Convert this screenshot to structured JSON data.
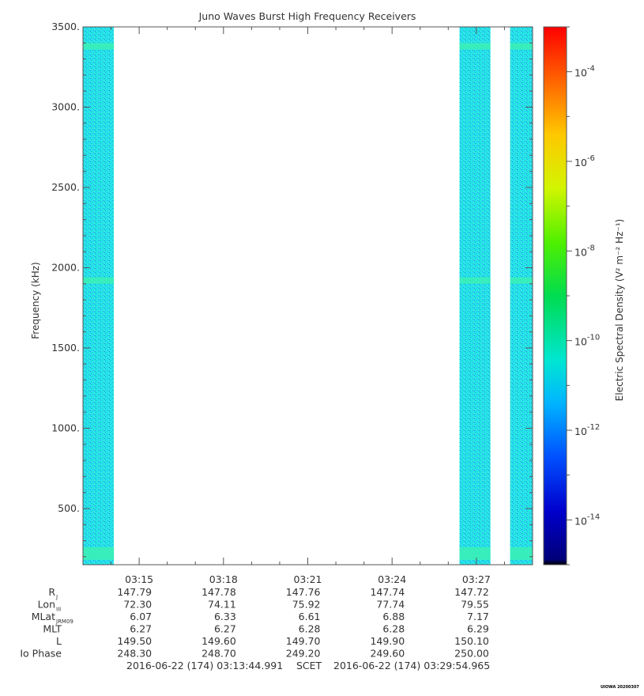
{
  "chart_data": {
    "type": "heatmap",
    "title": "Juno Waves Burst High Frequency Receivers",
    "ylabel": "Frequency (kHz)",
    "colorbar_label": "Electric Spectral Density (V² m⁻² Hz⁻¹)",
    "ylim": [
      150,
      3500
    ],
    "y_ticks": [
      500,
      1000,
      1500,
      2000,
      2500,
      3000,
      3500
    ],
    "y_tick_labels": [
      "500.",
      "1000.",
      "1500.",
      "2000.",
      "2500.",
      "3000.",
      "3500."
    ],
    "x_range_minutes": [
      193.0,
      209.0
    ],
    "x_ticks_minutes": [
      195,
      198,
      201,
      204,
      207
    ],
    "x_tick_labels": [
      "03:15",
      "03:18",
      "03:21",
      "03:24",
      "03:27"
    ],
    "colorbar_scale": "log",
    "colorbar_range": [
      1e-15,
      0.001
    ],
    "colorbar_ticks": [
      -14,
      -12,
      -10,
      -8,
      -6,
      -4
    ],
    "colorbar_tick_labels": [
      "10",
      "10",
      "10",
      "10",
      "10",
      "10"
    ],
    "colorbar_tick_exponents": [
      "-14",
      "-12",
      "-10",
      "-8",
      "-6",
      "-4"
    ],
    "data_intervals_minutes": [
      [
        193.0,
        194.1
      ],
      [
        206.4,
        207.5
      ],
      [
        208.2,
        209.0
      ]
    ],
    "background_log_level": -11.7,
    "emission_bands_khz": [
      220,
      1920,
      3380
    ],
    "colors": {
      "background_fill": "#26e6e6",
      "emission_band": "#3cf0b4"
    }
  },
  "ephemeris": {
    "rows": [
      {
        "label": "R",
        "sub": "J",
        "values": [
          "147.79",
          "147.78",
          "147.76",
          "147.74",
          "147.72"
        ]
      },
      {
        "label": "Lon",
        "sub": "III",
        "values": [
          "72.30",
          "74.11",
          "75.92",
          "77.74",
          "79.55"
        ]
      },
      {
        "label": "MLat",
        "sub": "JRM09",
        "values": [
          "6.07",
          "6.33",
          "6.61",
          "6.88",
          "7.17"
        ]
      },
      {
        "label": "MLT",
        "sub": "",
        "values": [
          "6.27",
          "6.27",
          "6.28",
          "6.28",
          "6.29"
        ]
      },
      {
        "label": "L",
        "sub": "",
        "values": [
          "149.50",
          "149.60",
          "149.70",
          "149.90",
          "150.10"
        ]
      },
      {
        "label": "Io Phase",
        "sub": "",
        "values": [
          "248.30",
          "248.70",
          "249.20",
          "249.60",
          "250.00"
        ]
      }
    ]
  },
  "footer": {
    "start": "2016-06-22 (174) 03:13:44.991",
    "scet": "SCET",
    "end": "2016-06-22 (174) 03:29:54.965"
  },
  "credit": "UIOWA 20200307"
}
